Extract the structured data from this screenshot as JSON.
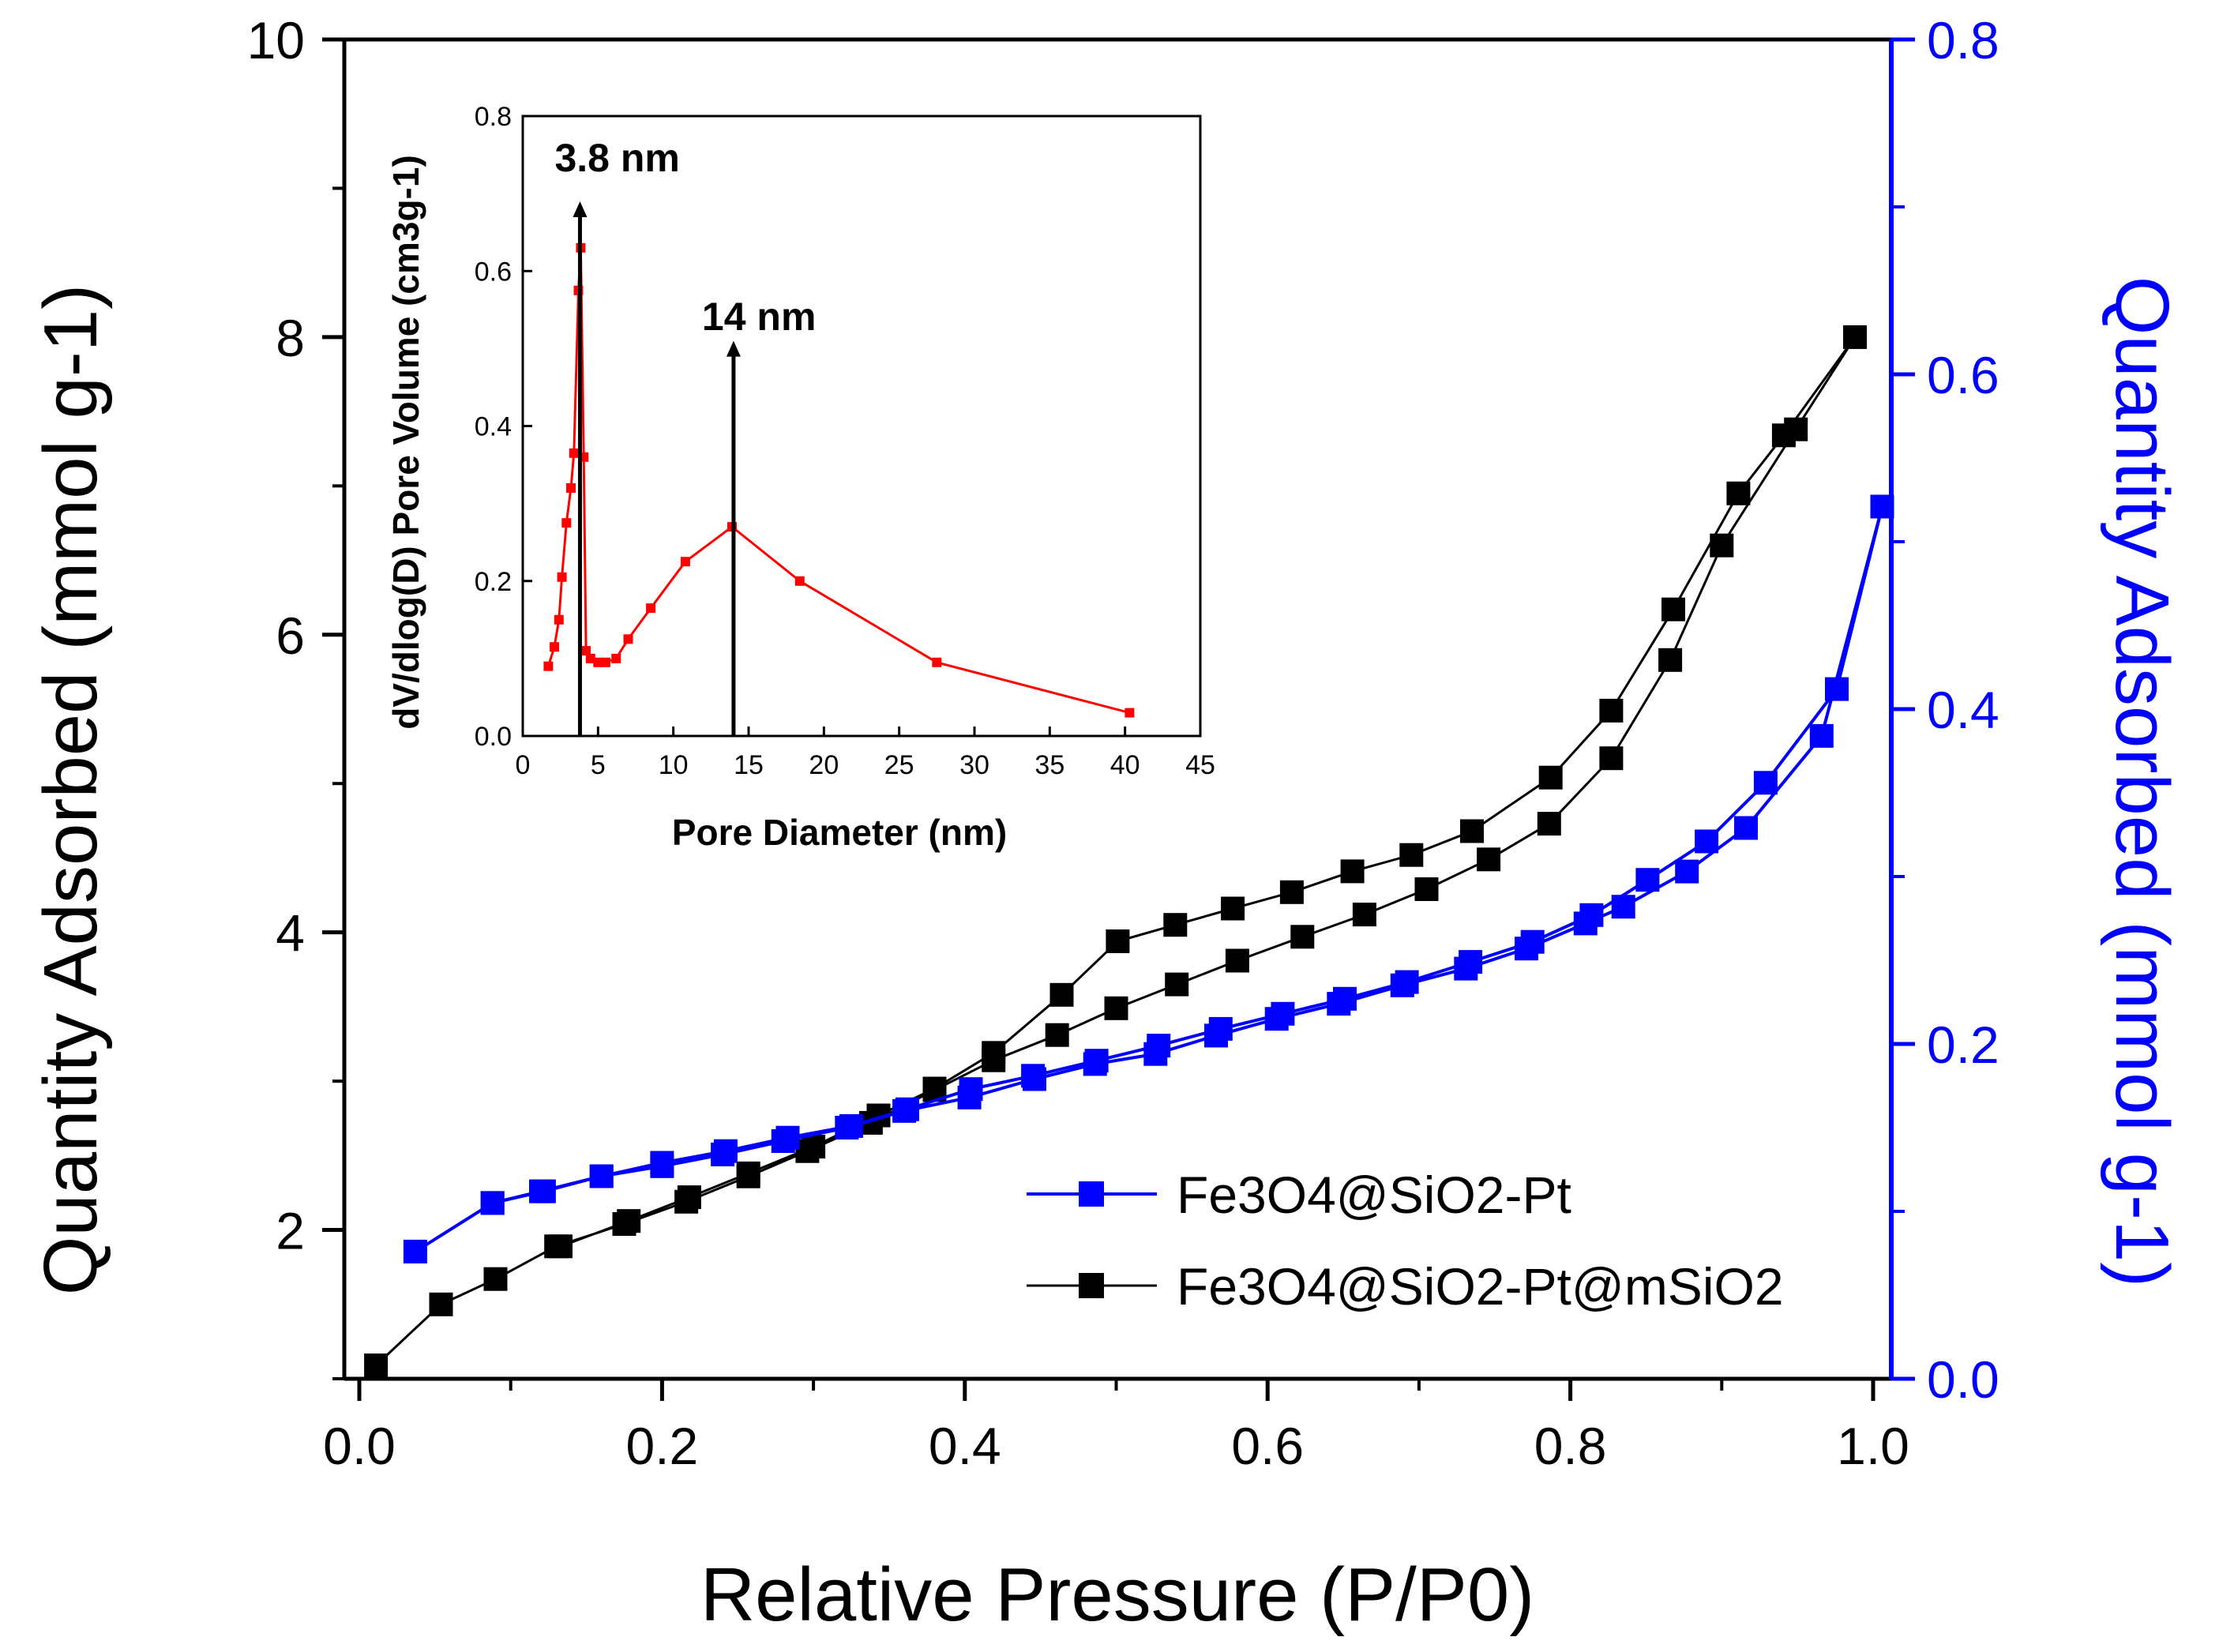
{
  "chart_data": [
    {
      "type": "line",
      "xlabel": "Relative Pressure (P/P0)",
      "ylabel": "Quantity Adsorbed (mmol g-1)",
      "ylabel_right": "Quantity Adsorbed (mmol g-1)",
      "xlim": [
        0.0,
        1.0
      ],
      "ylim": [
        1.0,
        10.0
      ],
      "ylim_right": [
        0.0,
        0.8
      ],
      "x_ticks": [
        "0.0",
        "0.2",
        "0.4",
        "0.6",
        "0.8",
        "1.0"
      ],
      "y_ticks": [
        "2",
        "4",
        "6",
        "8",
        "10"
      ],
      "y_ticks_right": [
        "0.0",
        "0.2",
        "0.4",
        "0.6",
        "0.8"
      ],
      "grid": false,
      "legend_position": "bottom-right",
      "colors": {
        "black_series": "#000000",
        "blue_series": "#0000ff",
        "right_axis": "#0000ff"
      },
      "series": [
        {
          "name": "Fe3O4@SiO2-Pt",
          "axis": "right",
          "color": "#0000ff",
          "marker": "square",
          "x": [
            0.037,
            0.088,
            0.122,
            0.16,
            0.2,
            0.242,
            0.283,
            0.325,
            0.362,
            0.404,
            0.445,
            0.487,
            0.528,
            0.569,
            0.61,
            0.651,
            0.692,
            0.734,
            0.775,
            0.814,
            0.851,
            0.89,
            0.929,
            0.976,
            1.006,
            0.966,
            0.916,
            0.877,
            0.835,
            0.81,
            0.771,
            0.731,
            0.689,
            0.647,
            0.606,
            0.566,
            0.526,
            0.486,
            0.446,
            0.403,
            0.36,
            0.322,
            0.28,
            0.24,
            0.2,
            0.16,
            0.12,
            0.088
          ],
          "y": [
            0.076,
            0.105,
            0.112,
            0.121,
            0.129,
            0.136,
            0.144,
            0.151,
            0.161,
            0.173,
            0.181,
            0.19,
            0.199,
            0.209,
            0.218,
            0.227,
            0.237,
            0.249,
            0.261,
            0.277,
            0.298,
            0.321,
            0.356,
            0.412,
            0.521,
            0.384,
            0.329,
            0.303,
            0.282,
            0.272,
            0.257,
            0.245,
            0.235,
            0.224,
            0.215,
            0.205,
            0.194,
            0.188,
            0.179,
            0.168,
            0.16,
            0.15,
            0.142,
            0.134,
            0.127,
            0.121,
            0.112,
            0.105
          ]
        },
        {
          "name": "Fe3O4@SiO2-Pt@mSiO2",
          "axis": "left",
          "color": "#000000",
          "marker": "square",
          "x": [
            0.011,
            0.054,
            0.09,
            0.13,
            0.175,
            0.216,
            0.257,
            0.296,
            0.338,
            0.38,
            0.419,
            0.461,
            0.5,
            0.54,
            0.58,
            0.623,
            0.664,
            0.705,
            0.746,
            0.786,
            0.827,
            0.866,
            0.9,
            0.949,
            0.988,
            0.941,
            0.911,
            0.868,
            0.827,
            0.787,
            0.735,
            0.695,
            0.656,
            0.616,
            0.577,
            0.539,
            0.501,
            0.464,
            0.419,
            0.38,
            0.343,
            0.3,
            0.257,
            0.218,
            0.178,
            0.133
          ],
          "y": [
            1.09,
            1.5,
            1.67,
            1.89,
            2.04,
            2.19,
            2.36,
            2.53,
            2.72,
            2.94,
            3.14,
            3.31,
            3.49,
            3.65,
            3.81,
            3.97,
            4.12,
            4.29,
            4.49,
            4.73,
            5.17,
            5.83,
            6.6,
            7.38,
            8.0,
            7.34,
            6.95,
            6.17,
            5.49,
            5.04,
            4.68,
            4.52,
            4.41,
            4.27,
            4.16,
            4.05,
            3.94,
            3.58,
            3.19,
            2.95,
            2.77,
            2.56,
            2.38,
            2.22,
            2.06,
            1.89
          ]
        }
      ],
      "inset": {
        "type": "line",
        "xlabel": "Pore Diameter (nm)",
        "ylabel": "dV/dlog(D) Pore Volume (cm3g-1)",
        "xlim": [
          0,
          45
        ],
        "ylim": [
          0.0,
          0.8
        ],
        "x_ticks": [
          "0",
          "5",
          "10",
          "15",
          "20",
          "25",
          "30",
          "35",
          "40",
          "45"
        ],
        "y_ticks": [
          "0.0",
          "0.2",
          "0.4",
          "0.6",
          "0.8"
        ],
        "color": "#ff0000",
        "x": [
          1.7,
          2.1,
          2.4,
          2.6,
          2.9,
          3.2,
          3.4,
          3.7,
          3.85,
          4.05,
          4.2,
          4.5,
          5.0,
          5.5,
          6.2,
          7.0,
          8.5,
          10.8,
          13.9,
          18.4,
          27.5,
          40.3
        ],
        "y": [
          0.09,
          0.115,
          0.15,
          0.205,
          0.275,
          0.32,
          0.365,
          0.575,
          0.63,
          0.36,
          0.11,
          0.1,
          0.095,
          0.095,
          0.1,
          0.125,
          0.165,
          0.225,
          0.27,
          0.2,
          0.095,
          0.03
        ],
        "annotations": [
          {
            "text": "3.8 nm",
            "x": 3.8
          },
          {
            "text": "14 nm",
            "x": 14
          }
        ]
      }
    }
  ]
}
